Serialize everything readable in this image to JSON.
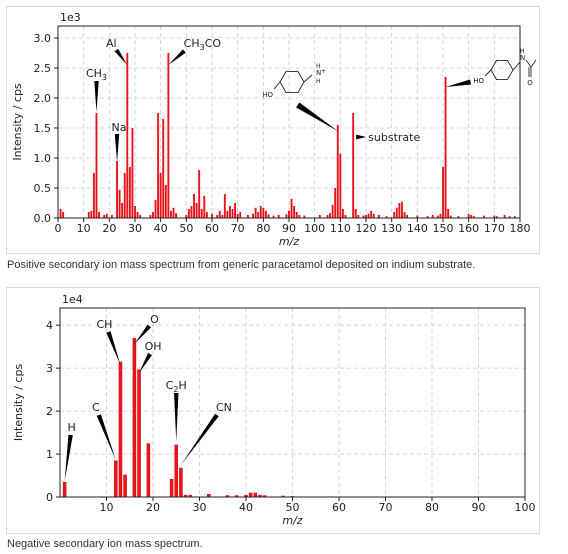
{
  "chart_data": [
    {
      "type": "bar",
      "exponent_label": "1e3",
      "xlabel": "m/z",
      "ylabel": "Intensity / cps",
      "xlim": [
        0,
        180
      ],
      "ylim": [
        0,
        3.2
      ],
      "x_ticks": [
        0,
        10,
        20,
        30,
        40,
        50,
        60,
        70,
        80,
        90,
        100,
        110,
        120,
        130,
        140,
        150,
        160,
        170,
        180
      ],
      "y_ticks": [
        0.0,
        0.5,
        1.0,
        1.5,
        2.0,
        2.5,
        3.0
      ],
      "y_tick_labels": [
        "0.0",
        "0.5",
        "1.0",
        "1.5",
        "2.0",
        "2.5",
        "3.0"
      ],
      "grid": true,
      "color": "#e8141c",
      "points": [
        [
          1,
          0.15
        ],
        [
          2,
          0.1
        ],
        [
          12,
          0.1
        ],
        [
          13,
          0.12
        ],
        [
          14,
          0.75
        ],
        [
          15,
          1.75
        ],
        [
          16,
          0.1
        ],
        [
          18,
          0.05
        ],
        [
          19,
          0.07
        ],
        [
          21,
          0.05
        ],
        [
          23,
          0.95
        ],
        [
          24,
          0.47
        ],
        [
          25,
          0.25
        ],
        [
          26,
          0.75
        ],
        [
          27,
          2.75
        ],
        [
          28,
          0.85
        ],
        [
          29,
          1.5
        ],
        [
          30,
          0.2
        ],
        [
          31,
          0.1
        ],
        [
          32,
          0.05
        ],
        [
          36,
          0.05
        ],
        [
          37,
          0.1
        ],
        [
          38,
          0.3
        ],
        [
          39,
          1.75
        ],
        [
          40,
          0.75
        ],
        [
          41,
          1.65
        ],
        [
          42,
          0.55
        ],
        [
          43,
          2.75
        ],
        [
          44,
          0.12
        ],
        [
          45,
          0.17
        ],
        [
          46,
          0.08
        ],
        [
          50,
          0.05
        ],
        [
          51,
          0.15
        ],
        [
          52,
          0.2
        ],
        [
          53,
          0.4
        ],
        [
          54,
          0.25
        ],
        [
          55,
          0.8
        ],
        [
          56,
          0.15
        ],
        [
          57,
          0.37
        ],
        [
          58,
          0.1
        ],
        [
          60,
          0.07
        ],
        [
          62,
          0.05
        ],
        [
          63,
          0.12
        ],
        [
          64,
          0.05
        ],
        [
          65,
          0.4
        ],
        [
          66,
          0.12
        ],
        [
          67,
          0.2
        ],
        [
          68,
          0.15
        ],
        [
          69,
          0.25
        ],
        [
          70,
          0.07
        ],
        [
          71,
          0.1
        ],
        [
          74,
          0.05
        ],
        [
          76,
          0.07
        ],
        [
          77,
          0.17
        ],
        [
          78,
          0.1
        ],
        [
          79,
          0.2
        ],
        [
          80,
          0.17
        ],
        [
          81,
          0.12
        ],
        [
          82,
          0.06
        ],
        [
          84,
          0.04
        ],
        [
          86,
          0.05
        ],
        [
          89,
          0.06
        ],
        [
          90,
          0.12
        ],
        [
          91,
          0.32
        ],
        [
          92,
          0.2
        ],
        [
          93,
          0.1
        ],
        [
          94,
          0.05
        ],
        [
          96,
          0.04
        ],
        [
          102,
          0.05
        ],
        [
          105,
          0.05
        ],
        [
          106,
          0.08
        ],
        [
          107,
          0.22
        ],
        [
          108,
          0.5
        ],
        [
          109,
          1.55
        ],
        [
          110,
          1.07
        ],
        [
          111,
          0.15
        ],
        [
          112,
          0.05
        ],
        [
          115,
          1.75
        ],
        [
          116,
          0.15
        ],
        [
          117,
          0.05
        ],
        [
          119,
          0.04
        ],
        [
          120,
          0.05
        ],
        [
          121,
          0.07
        ],
        [
          122,
          0.12
        ],
        [
          123,
          0.07
        ],
        [
          125,
          0.05
        ],
        [
          128,
          0.03
        ],
        [
          131,
          0.1
        ],
        [
          132,
          0.17
        ],
        [
          133,
          0.25
        ],
        [
          134,
          0.27
        ],
        [
          135,
          0.1
        ],
        [
          136,
          0.05
        ],
        [
          140,
          0.04
        ],
        [
          144,
          0.03
        ],
        [
          146,
          0.05
        ],
        [
          148,
          0.04
        ],
        [
          149,
          0.07
        ],
        [
          150,
          0.85
        ],
        [
          151,
          2.35
        ],
        [
          152,
          0.15
        ],
        [
          153,
          0.04
        ],
        [
          156,
          0.03
        ],
        [
          160,
          0.07
        ],
        [
          161,
          0.05
        ],
        [
          162,
          0.03
        ],
        [
          166,
          0.04
        ],
        [
          170,
          0.04
        ],
        [
          171,
          0.03
        ],
        [
          174,
          0.05
        ],
        [
          176,
          0.03
        ],
        [
          178,
          0.03
        ]
      ],
      "annotations": [
        {
          "text": "CH3",
          "x": 15
        },
        {
          "text": "Al",
          "x": 27
        },
        {
          "text": "Na",
          "x": 23
        },
        {
          "text": "CH3CO",
          "x": 43
        },
        {
          "text": "substrate",
          "x": 115
        }
      ],
      "structure_labels": {
        "hydroxyl": "HO",
        "ammonium": "N",
        "ammonium_h": "H",
        "ammonium_h2": "H",
        "charge": "+",
        "amide_n": "N",
        "amide_h": "H",
        "amide_o": "O"
      }
    },
    {
      "type": "bar",
      "exponent_label": "1e4",
      "xlabel": "m/z",
      "ylabel": "Intensity / cps",
      "xlim": [
        0,
        100
      ],
      "ylim": [
        0,
        4.4
      ],
      "x_ticks": [
        10,
        20,
        30,
        40,
        50,
        60,
        70,
        80,
        90,
        100
      ],
      "y_ticks": [
        0,
        1,
        2,
        3,
        4
      ],
      "y_tick_labels": [
        "0",
        "1",
        "2",
        "3",
        "4"
      ],
      "grid": true,
      "color": "#e8141c",
      "points": [
        [
          1,
          0.35
        ],
        [
          12,
          0.85
        ],
        [
          13,
          3.15
        ],
        [
          14,
          0.52
        ],
        [
          16,
          3.7
        ],
        [
          17,
          2.97
        ],
        [
          19,
          1.25
        ],
        [
          24,
          0.42
        ],
        [
          25,
          1.22
        ],
        [
          26,
          0.68
        ],
        [
          27,
          0.05
        ],
        [
          28,
          0.05
        ],
        [
          32,
          0.07
        ],
        [
          36,
          0.04
        ],
        [
          38,
          0.04
        ],
        [
          40,
          0.05
        ],
        [
          41,
          0.1
        ],
        [
          42,
          0.1
        ],
        [
          43,
          0.05
        ],
        [
          44,
          0.04
        ],
        [
          48,
          0.03
        ],
        [
          50,
          0.02
        ]
      ],
      "annotations": [
        {
          "text": "H",
          "x": 1
        },
        {
          "text": "C",
          "x": 12
        },
        {
          "text": "CH",
          "x": 13
        },
        {
          "text": "O",
          "x": 16
        },
        {
          "text": "OH",
          "x": 17
        },
        {
          "text": "C2H",
          "x": 25
        },
        {
          "text": "CN",
          "x": 26
        }
      ]
    }
  ],
  "captions": {
    "top": "Positive secondary ion mass spectrum from generic paracetamol deposited on indium substrate.",
    "bottom": "Negative secondary ion mass spectrum."
  }
}
